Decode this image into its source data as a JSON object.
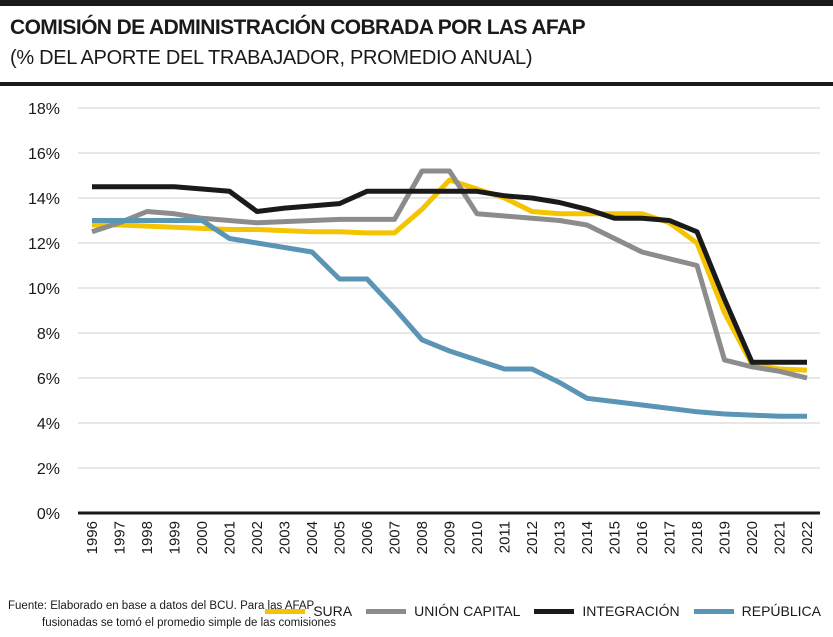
{
  "header": {
    "title": "COMISIÓN DE ADMINISTRACIÓN COBRADA POR LAS AFAP",
    "subtitle": "(% DEL APORTE DEL TRABAJADOR, PROMEDIO ANUAL)"
  },
  "footer": {
    "source_line1": "Fuente: Elaborado en base a datos del BCU. Para las AFAP",
    "source_line2": "fusionadas se tomó el promedio simple de las comisiones"
  },
  "chart_data": {
    "type": "line",
    "title": "COMISIÓN DE ADMINISTRACIÓN COBRADA POR LAS AFAP",
    "subtitle": "(% DEL APORTE DEL TRABAJADOR, PROMEDIO ANUAL)",
    "categories": [
      "1996",
      "1997",
      "1998",
      "1999",
      "2000",
      "2001",
      "2002",
      "2003",
      "2004",
      "2005",
      "2006",
      "2007",
      "2008",
      "2009",
      "2010",
      "2011",
      "2012",
      "2013",
      "2014",
      "2015",
      "2016",
      "2017",
      "2018",
      "2019",
      "2020",
      "2021",
      "2022"
    ],
    "ylim": [
      0,
      18
    ],
    "yticks": [
      "0%",
      "2%",
      "4%",
      "6%",
      "8%",
      "10%",
      "12%",
      "14%",
      "16%",
      "18%"
    ],
    "grid": true,
    "legend_position": "bottom-right",
    "series": [
      {
        "name": "SURA",
        "color": "#f5c400",
        "values": [
          12.8,
          12.8,
          12.75,
          12.7,
          12.65,
          12.6,
          12.6,
          12.55,
          12.5,
          12.5,
          12.45,
          12.45,
          13.5,
          14.8,
          14.4,
          14.0,
          13.4,
          13.3,
          13.3,
          13.3,
          13.3,
          12.9,
          12.0,
          8.9,
          6.6,
          6.4,
          6.35
        ]
      },
      {
        "name": "UNIÓN CAPITAL",
        "color": "#8c8c8c",
        "values": [
          12.5,
          12.9,
          13.4,
          13.3,
          13.1,
          13.0,
          12.9,
          12.95,
          13.0,
          13.05,
          13.05,
          13.05,
          15.2,
          15.2,
          13.3,
          13.2,
          13.1,
          13.0,
          12.8,
          12.2,
          11.6,
          11.3,
          11.0,
          6.8,
          6.5,
          6.3,
          6.0
        ]
      },
      {
        "name": "INTEGRACIÓN",
        "color": "#1a1a1a",
        "values": [
          14.5,
          14.5,
          14.5,
          14.5,
          14.4,
          14.3,
          13.4,
          13.55,
          13.65,
          13.75,
          14.3,
          14.3,
          14.3,
          14.3,
          14.3,
          14.1,
          14.0,
          13.8,
          13.5,
          13.1,
          13.1,
          13.0,
          12.5,
          9.5,
          6.7,
          6.7,
          6.7
        ]
      },
      {
        "name": "REPÚBLICA",
        "color": "#5b95b5",
        "values": [
          13.0,
          13.0,
          13.0,
          13.0,
          13.0,
          12.2,
          12.0,
          11.8,
          11.6,
          10.4,
          10.4,
          9.1,
          7.7,
          7.2,
          6.8,
          6.4,
          6.4,
          5.8,
          5.1,
          4.95,
          4.8,
          4.65,
          4.5,
          4.4,
          4.35,
          4.3,
          4.3
        ]
      }
    ]
  }
}
